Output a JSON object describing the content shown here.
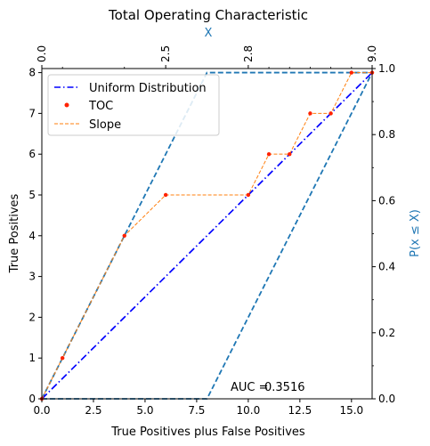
{
  "chart_data": {
    "type": "line",
    "title": "Total Operating Characteristic",
    "xlabel": "True Positives plus False Positives",
    "ylabel": "True Positives",
    "xlim": [
      0,
      16
    ],
    "ylim": [
      0,
      8.1
    ],
    "x_ticks": [
      0,
      2.5,
      5,
      7.5,
      10,
      12.5,
      15
    ],
    "x_tick_labels": [
      "0.0",
      "2.5",
      "5.0",
      "7.5",
      "10.0",
      "12.5",
      "15.0"
    ],
    "y_ticks": [
      0,
      1,
      2,
      3,
      4,
      5,
      6,
      7,
      8
    ],
    "y_tick_labels": [
      "0",
      "1",
      "2",
      "3",
      "4",
      "5",
      "6",
      "7",
      "8"
    ],
    "right_axis": {
      "label": "P(x ≤ X)",
      "color": "#1f77b4",
      "ticks": [
        0,
        0.2,
        0.4,
        0.6,
        0.8,
        1.0
      ],
      "tick_labels": [
        "0.0",
        "0.2",
        "0.4",
        "0.6",
        "0.8",
        "1.0"
      ]
    },
    "top_axis": {
      "label": "X",
      "color": "#1f77b4",
      "ticks": [
        0,
        6,
        10,
        16
      ],
      "tick_labels": [
        "0.0",
        "2.5",
        "2.8",
        "9.0"
      ],
      "minor_ticks": [
        1,
        4,
        11,
        12,
        13,
        14,
        15
      ]
    },
    "series": [
      {
        "name": "Uniform Distribution",
        "style": "dashdot",
        "color": "#0000ff",
        "x": [
          0,
          16
        ],
        "y": [
          0,
          8
        ]
      },
      {
        "name": "TOC",
        "style": "points",
        "color": "#ff2200",
        "x": [
          0,
          1,
          4,
          6,
          10,
          11,
          12,
          13,
          14,
          15,
          16
        ],
        "y": [
          0,
          1,
          4,
          5,
          5,
          6,
          6,
          7,
          7,
          8,
          8
        ]
      },
      {
        "name": "Slope",
        "style": "dashed",
        "color": "#ff7f0e",
        "x": [
          0,
          1,
          4,
          6,
          10,
          11,
          12,
          13,
          14,
          15,
          16
        ],
        "y": [
          0,
          1,
          4,
          5,
          5,
          6,
          6,
          7,
          7,
          8,
          8
        ]
      }
    ],
    "bounds": {
      "color": "#1f77b4",
      "upper": {
        "x": [
          0,
          8,
          16
        ],
        "y": [
          0,
          8,
          8
        ]
      },
      "lower": {
        "x": [
          0,
          8,
          16
        ],
        "y": [
          0,
          0,
          8
        ]
      }
    },
    "annotation": {
      "label": "AUC =",
      "value": "0.3516"
    },
    "legend": "top-left",
    "grid": false
  }
}
